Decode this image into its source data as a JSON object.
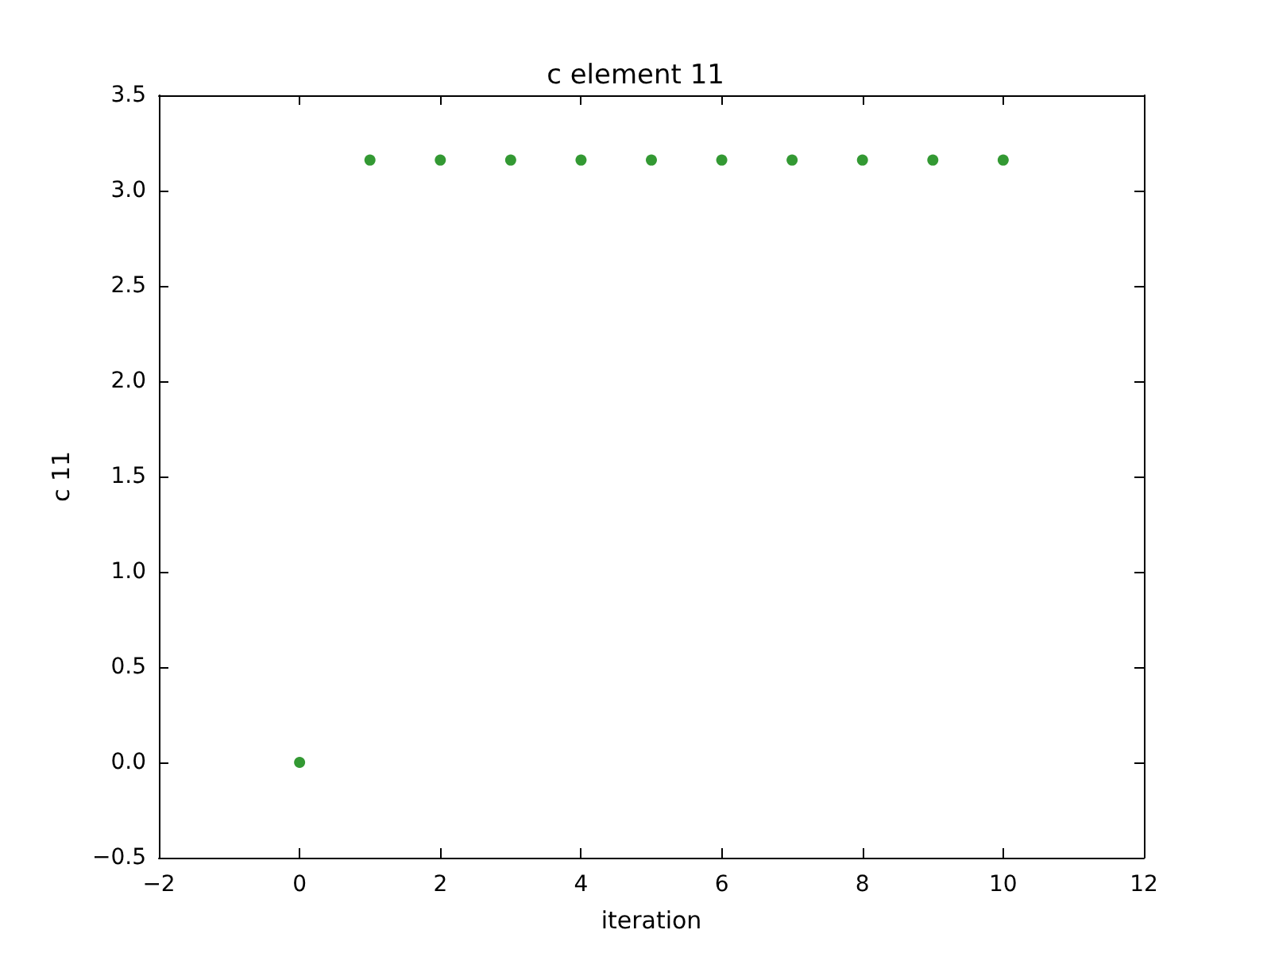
{
  "chart_data": {
    "type": "scatter",
    "title": "c element 11",
    "xlabel": "iteration",
    "ylabel": "c 11",
    "x": [
      0,
      1,
      2,
      3,
      4,
      5,
      6,
      7,
      8,
      9,
      10
    ],
    "series": [
      {
        "color": "#008000",
        "values": [
          0,
          3.16,
          3.16,
          3.16,
          3.16,
          3.16,
          3.16,
          3.16,
          3.16,
          3.16,
          3.16
        ]
      }
    ],
    "xlim": [
      -2,
      12
    ],
    "xticks": [
      -2,
      0,
      2,
      4,
      6,
      8,
      10,
      12
    ],
    "ylim": [
      -0.5,
      3.5
    ],
    "yticks": [
      -0.5,
      {
        "value": 0,
        "label": "0.0"
      },
      0.5,
      {
        "value": 1,
        "label": "1.0"
      },
      1.5,
      {
        "value": 2,
        "label": "2.0"
      },
      2.5,
      {
        "value": 3,
        "label": "3.0"
      },
      3.5
    ],
    "marker": "circle"
  }
}
